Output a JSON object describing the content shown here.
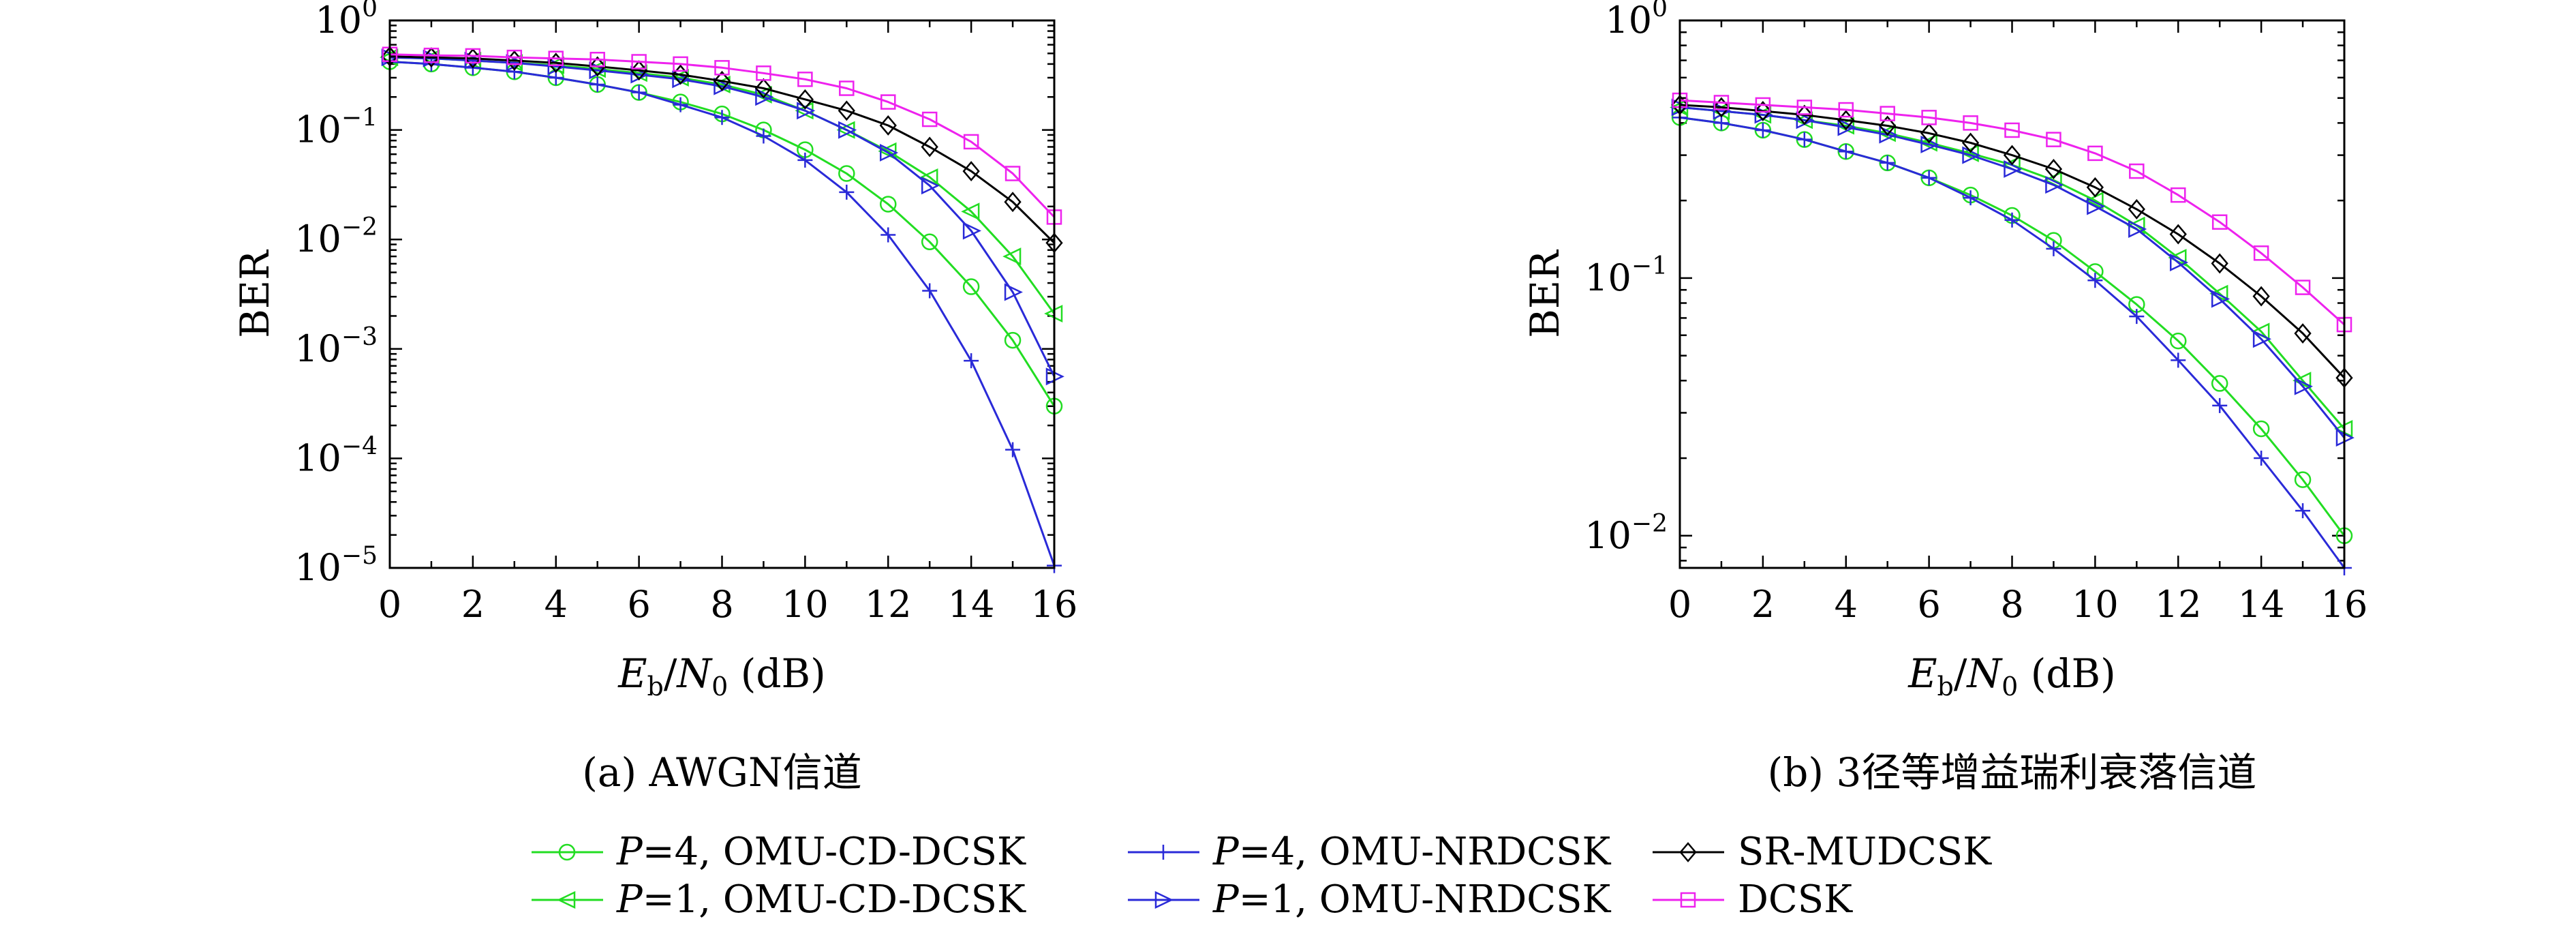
{
  "legend": [
    {
      "series": "P=4, OMU-CD-DCSK",
      "p_label": "P",
      "rest": "=4, OMU-CD-DCSK",
      "color": "#22dd22",
      "marker": "circle"
    },
    {
      "series": "P=4, OMU-NRDCSK",
      "p_label": "P",
      "rest": "=4, OMU-NRDCSK",
      "color": "#2a2ad8",
      "marker": "plus"
    },
    {
      "series": "SR-MUDCSK",
      "p_label": "",
      "rest": "SR-MUDCSK",
      "color": "#000000",
      "marker": "diamond"
    },
    {
      "series": "P=1, OMU-CD-DCSK",
      "p_label": "P",
      "rest": "=1, OMU-CD-DCSK",
      "color": "#22dd22",
      "marker": "triangle-left"
    },
    {
      "series": "P=1, OMU-NRDCSK",
      "p_label": "P",
      "rest": "=1, OMU-NRDCSK",
      "color": "#2a2ad8",
      "marker": "triangle-right"
    },
    {
      "series": "DCSK",
      "p_label": "",
      "rest": "DCSK",
      "color": "#ee22ee",
      "marker": "square"
    }
  ],
  "chart_data": [
    {
      "type": "line",
      "caption": "(a) AWGN信道",
      "xlabel": "Eb/N0 (dB)",
      "ylabel": "BER",
      "xlim": [
        0,
        16
      ],
      "ylim": [
        1e-05,
        1
      ],
      "yscale": "log",
      "x_ticks": [
        0,
        2,
        4,
        6,
        8,
        10,
        12,
        14,
        16
      ],
      "y_ticks": [
        {
          "value": 1e-05,
          "base": "10",
          "exp": "−5"
        },
        {
          "value": 0.0001,
          "base": "10",
          "exp": "−4"
        },
        {
          "value": 0.001,
          "base": "10",
          "exp": "−3"
        },
        {
          "value": 0.01,
          "base": "10",
          "exp": "−2"
        },
        {
          "value": 0.1,
          "base": "10",
          "exp": "−1"
        },
        {
          "value": 1,
          "base": "10",
          "exp": "0"
        }
      ],
      "grid": false,
      "x": [
        0,
        1,
        2,
        3,
        4,
        5,
        6,
        7,
        8,
        9,
        10,
        11,
        12,
        13,
        14,
        15,
        16
      ],
      "series": [
        {
          "name": "P=4, OMU-CD-DCSK",
          "color": "#22dd22",
          "marker": "circle",
          "values": [
            0.42,
            0.4,
            0.37,
            0.34,
            0.3,
            0.26,
            0.22,
            0.18,
            0.14,
            0.1,
            0.066,
            0.04,
            0.021,
            0.0095,
            0.0037,
            0.0012,
            0.0003
          ]
        },
        {
          "name": "P=1, OMU-CD-DCSK",
          "color": "#22dd22",
          "marker": "triangle-left",
          "values": [
            0.46,
            0.45,
            0.43,
            0.41,
            0.39,
            0.36,
            0.33,
            0.3,
            0.26,
            0.21,
            0.15,
            0.1,
            0.064,
            0.037,
            0.018,
            0.007,
            0.0021
          ]
        },
        {
          "name": "P=4, OMU-NRDCSK",
          "color": "#2a2ad8",
          "marker": "plus",
          "values": [
            0.42,
            0.4,
            0.37,
            0.34,
            0.3,
            0.26,
            0.22,
            0.17,
            0.13,
            0.088,
            0.053,
            0.027,
            0.011,
            0.0034,
            0.00078,
            0.00012,
            1.05e-05
          ]
        },
        {
          "name": "P=1, OMU-NRDCSK",
          "color": "#2a2ad8",
          "marker": "triangle-right",
          "values": [
            0.46,
            0.45,
            0.43,
            0.41,
            0.38,
            0.35,
            0.32,
            0.29,
            0.25,
            0.2,
            0.15,
            0.1,
            0.062,
            0.031,
            0.012,
            0.0033,
            0.00056
          ]
        },
        {
          "name": "SR-MUDCSK",
          "color": "#000000",
          "marker": "diamond",
          "values": [
            0.47,
            0.46,
            0.45,
            0.43,
            0.41,
            0.38,
            0.35,
            0.32,
            0.28,
            0.24,
            0.19,
            0.15,
            0.11,
            0.07,
            0.042,
            0.022,
            0.0093
          ]
        },
        {
          "name": "DCSK",
          "color": "#ee22ee",
          "marker": "square",
          "values": [
            0.49,
            0.48,
            0.475,
            0.46,
            0.45,
            0.44,
            0.42,
            0.4,
            0.37,
            0.33,
            0.29,
            0.24,
            0.18,
            0.125,
            0.078,
            0.04,
            0.016
          ]
        }
      ]
    },
    {
      "type": "line",
      "caption": "(b) 3径等增益瑞利衰落信道",
      "xlabel": "Eb/N0 (dB)",
      "ylabel": "BER",
      "xlim": [
        0,
        16
      ],
      "ylim": [
        0.0075,
        1
      ],
      "yscale": "log",
      "x_ticks": [
        0,
        2,
        4,
        6,
        8,
        10,
        12,
        14,
        16
      ],
      "y_ticks": [
        {
          "value": 0.01,
          "base": "10",
          "exp": "−2"
        },
        {
          "value": 0.1,
          "base": "10",
          "exp": "−1"
        },
        {
          "value": 1,
          "base": "10",
          "exp": "0"
        }
      ],
      "grid": false,
      "x": [
        0,
        1,
        2,
        3,
        4,
        5,
        6,
        7,
        8,
        9,
        10,
        11,
        12,
        13,
        14,
        15,
        16
      ],
      "series": [
        {
          "name": "P=4, OMU-CD-DCSK",
          "color": "#22dd22",
          "marker": "circle",
          "values": [
            0.42,
            0.4,
            0.375,
            0.345,
            0.31,
            0.28,
            0.245,
            0.21,
            0.175,
            0.14,
            0.106,
            0.079,
            0.057,
            0.039,
            0.026,
            0.0165,
            0.01
          ]
        },
        {
          "name": "P=1, OMU-CD-DCSK",
          "color": "#22dd22",
          "marker": "triangle-left",
          "values": [
            0.46,
            0.445,
            0.43,
            0.41,
            0.39,
            0.365,
            0.335,
            0.305,
            0.275,
            0.24,
            0.2,
            0.16,
            0.12,
            0.087,
            0.062,
            0.04,
            0.026
          ]
        },
        {
          "name": "P=4, OMU-NRDCSK",
          "color": "#2a2ad8",
          "marker": "plus",
          "values": [
            0.42,
            0.4,
            0.375,
            0.345,
            0.31,
            0.28,
            0.245,
            0.205,
            0.168,
            0.13,
            0.098,
            0.071,
            0.048,
            0.032,
            0.02,
            0.0125,
            0.0075
          ]
        },
        {
          "name": "P=1, OMU-NRDCSK",
          "color": "#2a2ad8",
          "marker": "triangle-right",
          "values": [
            0.46,
            0.445,
            0.43,
            0.41,
            0.385,
            0.36,
            0.33,
            0.3,
            0.265,
            0.23,
            0.19,
            0.155,
            0.115,
            0.083,
            0.058,
            0.038,
            0.024
          ]
        },
        {
          "name": "SR-MUDCSK",
          "color": "#000000",
          "marker": "diamond",
          "values": [
            0.47,
            0.46,
            0.445,
            0.43,
            0.41,
            0.39,
            0.365,
            0.335,
            0.3,
            0.265,
            0.225,
            0.185,
            0.148,
            0.114,
            0.085,
            0.061,
            0.041
          ]
        },
        {
          "name": "DCSK",
          "color": "#ee22ee",
          "marker": "square",
          "values": [
            0.49,
            0.48,
            0.47,
            0.46,
            0.45,
            0.435,
            0.42,
            0.4,
            0.375,
            0.345,
            0.305,
            0.26,
            0.21,
            0.165,
            0.125,
            0.092,
            0.066
          ]
        }
      ]
    }
  ]
}
